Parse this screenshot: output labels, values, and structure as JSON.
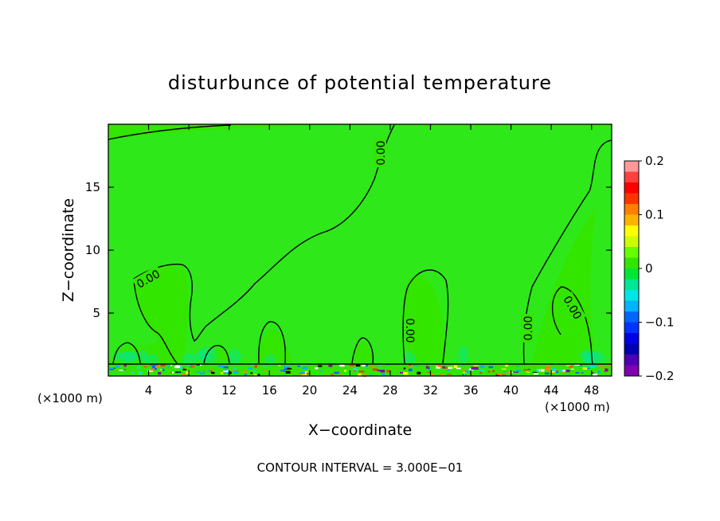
{
  "chart_data": {
    "type": "heatmap",
    "title": "disturbunce of potential temperature",
    "xlabel": "X−coordinate",
    "ylabel": "Z−coordinate",
    "x_unit_left": "(×1000 m)",
    "x_unit_right": "(×1000 m)",
    "xlim": [
      0,
      50
    ],
    "ylim": [
      0,
      20
    ],
    "x_ticks": [
      4,
      8,
      12,
      16,
      20,
      24,
      28,
      32,
      36,
      40,
      44,
      48
    ],
    "y_ticks": [
      5,
      10,
      15
    ],
    "field_range": [
      -0.2,
      0.2
    ],
    "dominant_value": 0.0,
    "contour_label": "0.00",
    "colorbar": {
      "ticks": [
        0.2,
        0.1,
        0,
        -0.1,
        -0.2
      ],
      "tick_labels": [
        "0.2",
        "0.1",
        "0",
        "−0.1",
        "−0.2"
      ],
      "colors": [
        "#ff9999",
        "#ff4040",
        "#ff0000",
        "#ff3300",
        "#ff8000",
        "#ffb300",
        "#ffff00",
        "#ccff00",
        "#66ff00",
        "#33e600",
        "#00e633",
        "#00e699",
        "#00e6e6",
        "#00b3ff",
        "#0066ff",
        "#0033ff",
        "#0000e6",
        "#0000b3",
        "#4d00b3",
        "#8000b3"
      ]
    },
    "note": "CONTOUR INTERVAL = 3.000E−01"
  }
}
